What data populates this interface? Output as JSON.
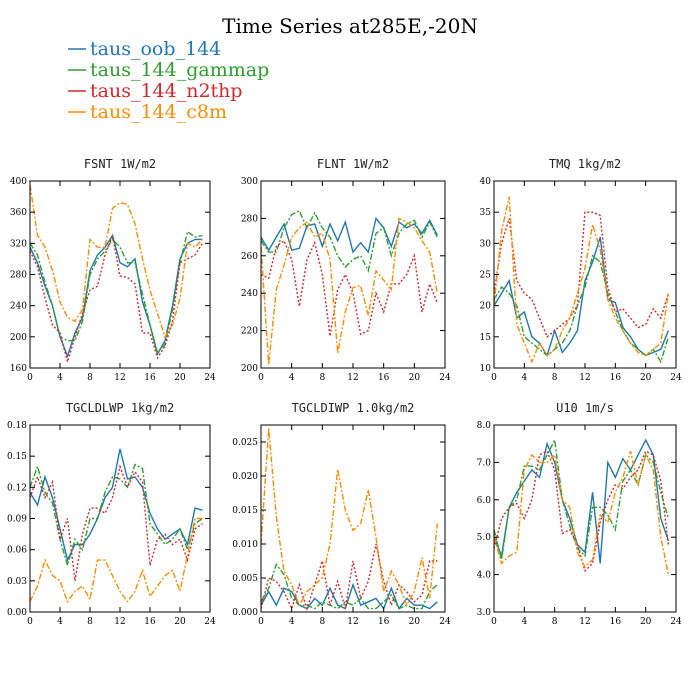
{
  "figure": {
    "title": "Time Series at285E,-20N"
  },
  "legend": [
    {
      "label": "taus_oob_144",
      "color": "#1f77b4"
    },
    {
      "label": "taus_144_gammap",
      "color": "#2ca02c"
    },
    {
      "label": "taus_144_n2thp",
      "color": "#d62728"
    },
    {
      "label": "taus_144_c8m",
      "color": "#ff8c00"
    }
  ],
  "chart_data": [
    {
      "type": "line",
      "title": "FSNT  1W/m2",
      "x": [
        0,
        1,
        2,
        3,
        4,
        5,
        6,
        7,
        8,
        9,
        10,
        11,
        12,
        13,
        14,
        15,
        16,
        17,
        18,
        19,
        20,
        21,
        22,
        23
      ],
      "xlim": [
        0,
        24
      ],
      "xticks": [
        0,
        4,
        8,
        12,
        16,
        20,
        24
      ],
      "ylim": [
        160,
        400
      ],
      "yticks": [
        "160",
        "200",
        "240",
        "280",
        "320",
        "360",
        "400"
      ],
      "series": [
        {
          "name": "taus_oob_144",
          "color": "#1f77b4",
          "values": [
            315,
            295,
            265,
            240,
            200,
            175,
            205,
            225,
            285,
            305,
            315,
            330,
            295,
            290,
            300,
            245,
            215,
            178,
            195,
            240,
            300,
            320,
            325,
            325
          ]
        },
        {
          "name": "taus_144_gammap",
          "color": "#2ca02c",
          "values": [
            320,
            305,
            270,
            240,
            200,
            195,
            195,
            220,
            280,
            300,
            310,
            325,
            315,
            295,
            295,
            255,
            215,
            180,
            190,
            235,
            295,
            335,
            328,
            330
          ]
        },
        {
          "name": "taus_144_n2thp",
          "color": "#d62728",
          "values": [
            310,
            290,
            250,
            215,
            205,
            168,
            200,
            230,
            260,
            265,
            305,
            330,
            278,
            276,
            268,
            205,
            205,
            173,
            188,
            220,
            295,
            300,
            305,
            320
          ]
        },
        {
          "name": "taus_144_c8m",
          "color": "#ff8c00",
          "values": [
            395,
            330,
            315,
            285,
            245,
            225,
            220,
            235,
            325,
            315,
            315,
            365,
            372,
            370,
            345,
            300,
            260,
            230,
            200,
            215,
            250,
            320,
            315,
            325
          ]
        }
      ]
    },
    {
      "type": "line",
      "title": "FLNT  1W/m2",
      "x": [
        0,
        1,
        2,
        3,
        4,
        5,
        6,
        7,
        8,
        9,
        10,
        11,
        12,
        13,
        14,
        15,
        16,
        17,
        18,
        19,
        20,
        21,
        22,
        23
      ],
      "xlim": [
        0,
        24
      ],
      "xticks": [
        0,
        4,
        8,
        12,
        16,
        20,
        24
      ],
      "ylim": [
        200,
        300
      ],
      "yticks": [
        "200",
        "220",
        "240",
        "260",
        "280",
        "300"
      ],
      "series": [
        {
          "name": "taus_oob_144",
          "color": "#1f77b4",
          "values": [
            270,
            263,
            270,
            277,
            263,
            264,
            276,
            277,
            265,
            277,
            268,
            278,
            262,
            267,
            262,
            280,
            275,
            265,
            278,
            275,
            277,
            272,
            279,
            271
          ]
        },
        {
          "name": "taus_144_gammap",
          "color": "#2ca02c",
          "values": [
            268,
            262,
            262,
            275,
            282,
            284,
            275,
            283,
            275,
            270,
            260,
            254,
            258,
            260,
            252,
            272,
            275,
            260,
            272,
            277,
            279,
            270,
            278,
            270
          ]
        },
        {
          "name": "taus_144_n2thp",
          "color": "#d62728",
          "values": [
            250,
            248,
            265,
            268,
            258,
            233,
            258,
            267,
            250,
            217,
            242,
            250,
            240,
            218,
            220,
            240,
            230,
            245,
            245,
            250,
            260,
            230,
            245,
            235
          ]
        },
        {
          "name": "taus_144_c8m",
          "color": "#ff8c00",
          "values": [
            265,
            202,
            242,
            255,
            270,
            275,
            278,
            270,
            272,
            258,
            208,
            230,
            243,
            244,
            228,
            252,
            247,
            242,
            280,
            278,
            275,
            268,
            262,
            240
          ]
        }
      ]
    },
    {
      "type": "line",
      "title": "TMQ  1kg/m2",
      "x": [
        0,
        1,
        2,
        3,
        4,
        5,
        6,
        7,
        8,
        9,
        10,
        11,
        12,
        13,
        14,
        15,
        16,
        17,
        18,
        19,
        20,
        21,
        22,
        23
      ],
      "xlim": [
        0,
        24
      ],
      "xticks": [
        0,
        4,
        8,
        12,
        16,
        20,
        24
      ],
      "ylim": [
        10,
        40
      ],
      "yticks": [
        "10",
        "15",
        "20",
        "25",
        "30",
        "35",
        "40"
      ],
      "series": [
        {
          "name": "taus_oob_144",
          "color": "#1f77b4",
          "values": [
            20,
            22,
            24,
            18,
            19,
            15,
            14,
            12,
            16,
            12.5,
            14,
            16,
            24,
            27,
            31,
            21,
            20.5,
            16.5,
            15,
            13,
            12,
            12.5,
            13,
            16
          ]
        },
        {
          "name": "taus_144_gammap",
          "color": "#2ca02c",
          "values": [
            21,
            23,
            22,
            20,
            15,
            14,
            13,
            12,
            13,
            14,
            16,
            20,
            23,
            28,
            27,
            22,
            19,
            16,
            14,
            13,
            12,
            13,
            11,
            15
          ]
        },
        {
          "name": "taus_144_n2thp",
          "color": "#d62728",
          "values": [
            22,
            30,
            34,
            24,
            22,
            21,
            18,
            15,
            16,
            17,
            18,
            20,
            35,
            35,
            34.5,
            23,
            19,
            19.5,
            18,
            16.5,
            17,
            19.5,
            18,
            22
          ]
        },
        {
          "name": "taus_144_c8m",
          "color": "#ff8c00",
          "values": [
            20,
            32,
            37.5,
            17,
            14,
            11,
            14,
            12,
            13,
            16,
            18,
            22,
            26,
            33,
            29,
            21,
            18,
            16,
            14,
            12.5,
            12,
            13,
            14,
            22
          ]
        }
      ]
    },
    {
      "type": "line",
      "title": "TGCLDLWP  1kg/m2",
      "x": [
        0,
        1,
        2,
        3,
        4,
        5,
        6,
        7,
        8,
        9,
        10,
        11,
        12,
        13,
        14,
        15,
        16,
        17,
        18,
        19,
        20,
        21,
        22,
        23
      ],
      "xlim": [
        0,
        24
      ],
      "xticks": [
        0,
        4,
        8,
        12,
        16,
        20,
        24
      ],
      "ylim": [
        0.0,
        0.18
      ],
      "yticks": [
        "0.00",
        "0.03",
        "0.06",
        "0.09",
        "0.12",
        "0.15",
        "0.18"
      ],
      "series": [
        {
          "name": "taus_oob_144",
          "color": "#1f77b4",
          "values": [
            0.115,
            0.103,
            0.13,
            0.11,
            0.08,
            0.05,
            0.065,
            0.065,
            0.075,
            0.09,
            0.11,
            0.12,
            0.157,
            0.128,
            0.13,
            0.12,
            0.095,
            0.08,
            0.07,
            0.075,
            0.08,
            0.065,
            0.1,
            0.098
          ]
        },
        {
          "name": "taus_144_gammap",
          "color": "#2ca02c",
          "values": [
            0.12,
            0.14,
            0.115,
            0.105,
            0.07,
            0.045,
            0.07,
            0.06,
            0.09,
            0.09,
            0.115,
            0.13,
            0.128,
            0.12,
            0.142,
            0.138,
            0.085,
            0.075,
            0.065,
            0.07,
            0.08,
            0.06,
            0.085,
            0.09
          ]
        },
        {
          "name": "taus_144_n2thp",
          "color": "#d62728",
          "values": [
            0.11,
            0.13,
            0.11,
            0.125,
            0.07,
            0.09,
            0.03,
            0.075,
            0.1,
            0.1,
            0.095,
            0.11,
            0.14,
            0.12,
            0.135,
            0.125,
            0.045,
            0.07,
            0.075,
            0.065,
            0.07,
            0.05,
            0.08,
            0.085
          ]
        },
        {
          "name": "taus_144_c8m",
          "color": "#ff8c00",
          "values": [
            0.01,
            0.025,
            0.05,
            0.035,
            0.03,
            0.01,
            0.02,
            0.025,
            0.012,
            0.05,
            0.05,
            0.035,
            0.02,
            0.01,
            0.02,
            0.04,
            0.015,
            0.025,
            0.035,
            0.04,
            0.02,
            0.055,
            0.09,
            0.09
          ]
        }
      ]
    },
    {
      "type": "line",
      "title": "TGCLDIWP  1.0kg/m2",
      "x": [
        0,
        1,
        2,
        3,
        4,
        5,
        6,
        7,
        8,
        9,
        10,
        11,
        12,
        13,
        14,
        15,
        16,
        17,
        18,
        19,
        20,
        21,
        22,
        23
      ],
      "xlim": [
        0,
        24
      ],
      "xticks": [
        0,
        4,
        8,
        12,
        16,
        20,
        24
      ],
      "ylim": [
        0.0,
        0.0275
      ],
      "yticks": [
        "0.000",
        "0.005",
        "0.010",
        "0.015",
        "0.020",
        "0.025"
      ],
      "series": [
        {
          "name": "taus_oob_144",
          "color": "#1f77b4",
          "values": [
            0.001,
            0.003,
            0.001,
            0.0035,
            0.003,
            0.001,
            0.0005,
            0.002,
            0.001,
            0.0035,
            0.001,
            0.0005,
            0.004,
            0.001,
            0.0015,
            0.002,
            0.0005,
            0.0035,
            0.0005,
            0.002,
            0.001,
            0.001,
            0.0005,
            0.0015
          ]
        },
        {
          "name": "taus_144_gammap",
          "color": "#2ca02c",
          "values": [
            0.0015,
            0.0035,
            0.007,
            0.0055,
            0.002,
            0.001,
            0.001,
            0.0005,
            0.0015,
            0.001,
            0.0005,
            0.0015,
            0.001,
            0.002,
            0.0005,
            0.0005,
            0.0015,
            0.0025,
            0.0005,
            0.001,
            0.0005,
            0.0005,
            0.003,
            0.004
          ]
        },
        {
          "name": "taus_144_n2thp",
          "color": "#d62728",
          "values": [
            0.0005,
            0.005,
            0.0045,
            0.003,
            0.0005,
            0.004,
            0.0005,
            0.004,
            0.0075,
            0.001,
            0.0045,
            0.0005,
            0.0075,
            0.002,
            0.0045,
            0.01,
            0.0045,
            0.001,
            0.004,
            0.003,
            0.0015,
            0.0025,
            0.0075,
            0.0075
          ]
        },
        {
          "name": "taus_144_c8m",
          "color": "#ff8c00",
          "values": [
            0.01,
            0.027,
            0.014,
            0.006,
            0.004,
            0.001,
            0.003,
            0.004,
            0.005,
            0.01,
            0.021,
            0.015,
            0.012,
            0.013,
            0.018,
            0.011,
            0.003,
            0.006,
            0.004,
            0.001,
            0.003,
            0.008,
            0.002,
            0.013
          ]
        }
      ]
    },
    {
      "type": "line",
      "title": "U10  1m/s",
      "x": [
        0,
        1,
        2,
        3,
        4,
        5,
        6,
        7,
        8,
        9,
        10,
        11,
        12,
        13,
        14,
        15,
        16,
        17,
        18,
        19,
        20,
        21,
        22,
        23
      ],
      "xlim": [
        0,
        24
      ],
      "xticks": [
        0,
        4,
        8,
        12,
        16,
        20,
        24
      ],
      "ylim": [
        3.0,
        8.0
      ],
      "yticks": [
        "3.0",
        "4.0",
        "5.0",
        "6.0",
        "7.0",
        "8.0"
      ],
      "series": [
        {
          "name": "taus_oob_144",
          "color": "#1f77b4",
          "values": [
            5.0,
            4.5,
            5.8,
            6.2,
            6.5,
            6.8,
            6.6,
            7.5,
            7.0,
            6.0,
            5.5,
            4.8,
            4.6,
            6.2,
            4.3,
            7.0,
            6.6,
            7.1,
            6.8,
            7.2,
            7.6,
            7.2,
            5.5,
            4.9
          ]
        },
        {
          "name": "taus_144_gammap",
          "color": "#2ca02c",
          "values": [
            5.2,
            4.4,
            5.8,
            6.0,
            6.9,
            6.9,
            6.8,
            7.2,
            7.6,
            6.0,
            5.3,
            4.7,
            4.5,
            5.8,
            5.8,
            5.6,
            5.2,
            6.5,
            6.8,
            6.4,
            7.2,
            7.0,
            6.2,
            5.5
          ]
        },
        {
          "name": "taus_144_n2thp",
          "color": "#d62728",
          "values": [
            4.7,
            5.5,
            5.8,
            5.9,
            5.5,
            6.0,
            7.2,
            7.3,
            6.8,
            5.1,
            5.2,
            4.8,
            4.1,
            4.3,
            5.4,
            6.0,
            6.4,
            6.3,
            6.6,
            6.8,
            7.3,
            7.2,
            6.5,
            4.8
          ]
        },
        {
          "name": "taus_144_c8m",
          "color": "#ff8c00",
          "values": [
            5.0,
            4.3,
            4.5,
            4.6,
            6.8,
            7.2,
            7.0,
            7.0,
            7.2,
            6.0,
            5.8,
            4.6,
            4.2,
            4.4,
            5.6,
            5.4,
            6.2,
            6.6,
            7.3,
            6.4,
            7.2,
            6.8,
            5.0,
            4.0
          ]
        }
      ]
    }
  ]
}
